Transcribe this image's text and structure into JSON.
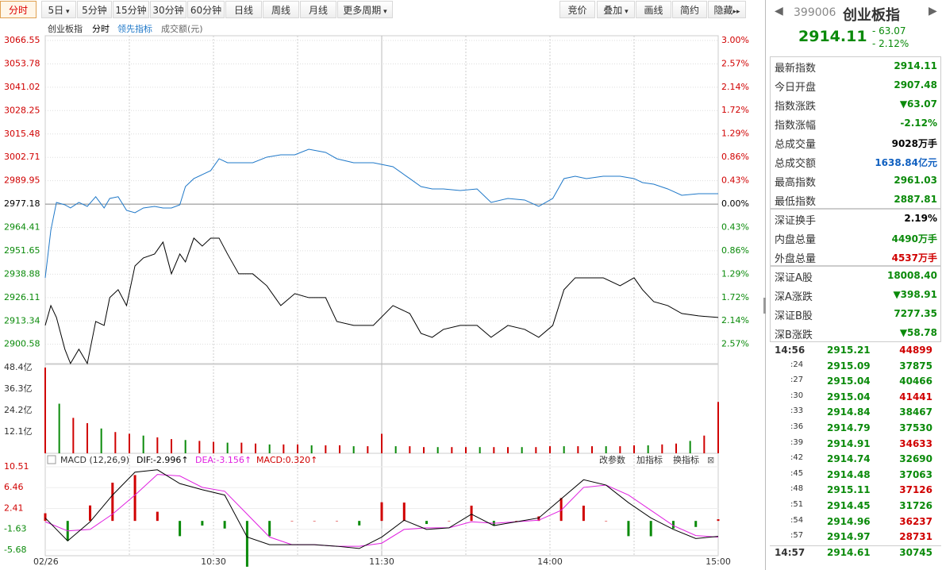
{
  "toolbar": {
    "periods": [
      "分时",
      "5日",
      "5分钟",
      "15分钟",
      "30分钟",
      "60分钟",
      "日线",
      "周线",
      "月线",
      "更多周期"
    ],
    "tools": [
      "竞价",
      "叠加",
      "画线",
      "简约",
      "隐藏"
    ]
  },
  "chart_data": [
    {
      "type": "line",
      "title": "创业板指",
      "subtitle": "分时",
      "annotations": [
        "成交额(元)"
      ],
      "x": [
        0,
        2,
        4,
        7,
        9,
        12,
        15,
        18,
        21,
        23,
        26,
        29,
        32,
        35,
        39,
        42,
        45,
        48,
        50,
        53,
        56,
        59,
        62,
        65,
        69,
        74,
        79,
        84,
        89,
        94,
        100,
        104,
        110,
        117,
        124,
        130,
        134,
        138,
        142,
        148,
        154,
        159,
        165,
        171,
        176,
        181,
        185,
        189,
        193,
        199,
        205,
        210,
        213,
        217,
        222,
        227,
        233,
        240
      ],
      "xlim": [
        0,
        240
      ],
      "xticks": [
        {
          "value": 0,
          "label": "02/26"
        },
        {
          "value": 60,
          "label": "10:30"
        },
        {
          "value": 120,
          "label": "11:30"
        },
        {
          "value": 180,
          "label": "14:00"
        },
        {
          "value": 240,
          "label": "15:00"
        }
      ],
      "ylim": [
        2889.6,
        3066.55
      ],
      "yticks": [
        3066.55,
        3053.78,
        3041.02,
        3028.25,
        3015.48,
        3002.71,
        2989.95,
        2977.18,
        2964.41,
        2951.65,
        2938.88,
        2926.11,
        2913.34,
        2900.58
      ],
      "y2lim": [
        -2.94,
        3.0
      ],
      "y2ticks": [
        {
          "value": 3.0,
          "label": "3.00%"
        },
        {
          "value": 2.57,
          "label": "2.57%"
        },
        {
          "value": 2.14,
          "label": "2.14%"
        },
        {
          "value": 1.72,
          "label": "1.72%"
        },
        {
          "value": 1.29,
          "label": "1.29%"
        },
        {
          "value": 0.86,
          "label": "0.86%"
        },
        {
          "value": 0.43,
          "label": "0.43%"
        },
        {
          "value": 0,
          "label": "0.00%"
        },
        {
          "value": -0.43,
          "label": "0.43%"
        },
        {
          "value": -0.86,
          "label": "0.86%"
        },
        {
          "value": -1.29,
          "label": "1.29%"
        },
        {
          "value": -1.72,
          "label": "1.72%"
        },
        {
          "value": -2.14,
          "label": "2.14%"
        },
        {
          "value": -2.57,
          "label": "2.57%"
        }
      ],
      "grid": true,
      "series": [
        {
          "name": "领先指标",
          "color": "#1f78c8",
          "values": [
            2936.9,
            2962.92,
            2978.09,
            2976.79,
            2975.06,
            2978.09,
            2975.92,
            2981.19,
            2975.06,
            2980.26,
            2981.19,
            2973.76,
            2972.46,
            2975.06,
            2975.92,
            2975.06,
            2975.06,
            2976.79,
            2986.76,
            2991.1,
            2993.27,
            2995.44,
            3001.94,
            2999.77,
            2999.77,
            2999.77,
            3002.81,
            3004.11,
            3004.11,
            3007.14,
            3005.41,
            3001.94,
            2999.77,
            2999.77,
            2997.6,
            2991.1,
            2986.76,
            2985.46,
            2985.46,
            2984.6,
            2985.46,
            2978.09,
            2980.26,
            2979.39,
            2975.92,
            2980.26,
            2991.1,
            2992.4,
            2991.1,
            2992.4,
            2992.4,
            2991.1,
            2988.93,
            2988.06,
            2985.46,
            2982.0,
            2982.86,
            2982.86
          ]
        },
        {
          "color": "#000000",
          "values": [
            2910.89,
            2921.72,
            2915.22,
            2897.88,
            2890.07,
            2897.88,
            2890.07,
            2913.05,
            2910.89,
            2926.06,
            2930.4,
            2921.72,
            2943.4,
            2947.74,
            2949.91,
            2956.41,
            2939.07,
            2949.91,
            2945.57,
            2958.58,
            2954.24,
            2958.58,
            2958.58,
            2949.91,
            2939.07,
            2939.07,
            2932.57,
            2921.72,
            2928.23,
            2926.06,
            2926.06,
            2913.05,
            2910.89,
            2910.89,
            2921.72,
            2917.39,
            2906.55,
            2904.38,
            2908.72,
            2910.89,
            2910.89,
            2904.38,
            2910.89,
            2908.72,
            2904.38,
            2910.89,
            2930.4,
            2936.9,
            2936.9,
            2936.9,
            2932.57,
            2936.9,
            2930.4,
            2923.89,
            2921.72,
            2917.39,
            2916.09,
            2915.22
          ]
        }
      ]
    },
    {
      "type": "bar",
      "x": [
        0,
        5,
        10,
        15,
        20,
        25,
        30,
        35,
        40,
        45,
        50,
        55,
        60,
        65,
        70,
        75,
        80,
        85,
        90,
        95,
        100,
        105,
        110,
        115,
        120,
        125,
        130,
        135,
        140,
        145,
        150,
        155,
        160,
        165,
        170,
        175,
        180,
        185,
        190,
        195,
        200,
        205,
        210,
        215,
        220,
        225,
        230,
        235,
        240
      ],
      "xlim": [
        0,
        240
      ],
      "values": [
        48.4,
        28,
        20,
        17,
        14,
        12,
        11,
        10,
        9,
        8,
        7.5,
        7,
        6.5,
        6,
        6,
        5.5,
        5,
        5,
        5,
        4.5,
        4.5,
        4.5,
        4,
        4,
        11,
        4,
        4,
        3.5,
        3.5,
        3.5,
        3.5,
        3.5,
        3.5,
        3.5,
        3.5,
        3.5,
        4,
        4,
        4,
        4,
        4,
        4,
        4.5,
        4.5,
        5,
        5.5,
        7,
        10,
        29
      ],
      "ylim": [
        0,
        48.4
      ],
      "yticks": [
        {
          "value": 48.4,
          "label": "48.4亿"
        },
        {
          "value": 36.3,
          "label": "36.3亿"
        },
        {
          "value": 24.2,
          "label": "24.2亿"
        },
        {
          "value": 12.1,
          "label": "12.1亿"
        }
      ]
    },
    {
      "type": "macd",
      "title": "MACD (12,26,9)",
      "annotations": [
        "DIF:-2.996↑",
        "DEA:-3.156↑",
        "MACD:0.320↑"
      ],
      "tools": [
        "改参数",
        "加指标",
        "换指标"
      ],
      "x": [
        0,
        8,
        16,
        24,
        32,
        40,
        48,
        56,
        64,
        72,
        80,
        88,
        96,
        104,
        112,
        120,
        128,
        136,
        144,
        152,
        160,
        168,
        176,
        184,
        192,
        200,
        208,
        216,
        224,
        232,
        240
      ],
      "xlim": [
        0,
        240
      ],
      "ylim": [
        -6.76,
        11.74
      ],
      "yticks": [
        10.51,
        6.46,
        2.41,
        -1.63,
        -5.68
      ],
      "series": [
        {
          "name": "DIF",
          "color": "#000000",
          "values": [
            0.57,
            -3.88,
            -0.17,
            5.02,
            9.47,
            9.92,
            7.25,
            6.06,
            5.02,
            -3.14,
            -4.62,
            -4.62,
            -4.62,
            -4.92,
            -5.36,
            -3.14,
            0.13,
            -1.65,
            -1.35,
            1.31,
            -0.91,
            -0.17,
            0.57,
            4.28,
            7.99,
            6.95,
            3.54,
            0.57,
            -1.65,
            -3.43,
            -2.996
          ]
        },
        {
          "name": "DEA",
          "color": "#e020e0",
          "values": [
            -0.17,
            -1.95,
            -1.65,
            1.31,
            5.02,
            9.03,
            8.73,
            6.51,
            5.76,
            1.31,
            -3.14,
            -4.62,
            -4.62,
            -4.92,
            -4.92,
            -4.33,
            -1.65,
            -1.35,
            -1.35,
            -0.17,
            -0.46,
            -0.17,
            0.13,
            2.06,
            6.51,
            6.95,
            5.02,
            2.06,
            -0.91,
            -2.84,
            -3.156
          ]
        },
        {
          "name": "MACD",
          "color": "#d00000",
          "values": [
            1.48,
            -3.86,
            3.0,
            7.42,
            8.9,
            1.78,
            -2.96,
            -0.9,
            -1.48,
            -8.9,
            -2.96,
            0,
            0,
            0,
            -0.88,
            3.62,
            3.56,
            -0.6,
            0,
            2.96,
            -0.9,
            0,
            0.88,
            4.44,
            2.96,
            0,
            -2.96,
            -2.98,
            -1.48,
            -1.18,
            0.32
          ]
        }
      ]
    }
  ],
  "panel": {
    "code": "399006",
    "name": "创业板指",
    "price": "2914.11",
    "change": "- 63.07",
    "pct": "- 2.12%",
    "sections": [
      [
        {
          "label": "最新指数",
          "value": "2914.11",
          "color": "#0a8a0a"
        },
        {
          "label": "今日开盘",
          "value": "2907.48",
          "color": "#0a8a0a"
        },
        {
          "label": "指数涨跌",
          "value": "▼63.07",
          "color": "#0a8a0a"
        },
        {
          "label": "指数涨幅",
          "value": "-2.12%",
          "color": "#0a8a0a"
        },
        {
          "label": "总成交量",
          "value": "9028万手",
          "color": "#000000"
        },
        {
          "label": "总成交额",
          "value": "1638.84亿元",
          "color": "#1060c0"
        },
        {
          "label": "最高指数",
          "value": "2961.03",
          "color": "#0a8a0a"
        },
        {
          "label": "最低指数",
          "value": "2887.81",
          "color": "#0a8a0a"
        }
      ],
      [
        {
          "label": "深证换手",
          "value": "2.19%",
          "color": "#000000"
        },
        {
          "label": "内盘总量",
          "value": "4490万手",
          "color": "#0a8a0a"
        },
        {
          "label": "外盘总量",
          "value": "4537万手",
          "color": "#d00000"
        }
      ],
      [
        {
          "label": "深证A股",
          "value": "18008.40",
          "color": "#0a8a0a"
        },
        {
          "label": "深A涨跌",
          "value": "▼398.91",
          "color": "#0a8a0a"
        },
        {
          "label": "深证B股",
          "value": "7277.35",
          "color": "#0a8a0a"
        },
        {
          "label": "深B涨跌",
          "value": "▼58.78",
          "color": "#0a8a0a"
        }
      ]
    ],
    "ticks": [
      {
        "time": "14:56",
        "price": "2915.21",
        "volume": "44899",
        "color": "#d00000"
      },
      {
        "time": ":24",
        "price": "2915.09",
        "volume": "37875",
        "color": "#0a8a0a"
      },
      {
        "time": ":27",
        "price": "2915.04",
        "volume": "40466",
        "color": "#0a8a0a"
      },
      {
        "time": ":30",
        "price": "2915.04",
        "volume": "41441",
        "color": "#d00000"
      },
      {
        "time": ":33",
        "price": "2914.84",
        "volume": "38467",
        "color": "#0a8a0a"
      },
      {
        "time": ":36",
        "price": "2914.79",
        "volume": "37530",
        "color": "#0a8a0a"
      },
      {
        "time": ":39",
        "price": "2914.91",
        "volume": "34633",
        "color": "#d00000"
      },
      {
        "time": ":42",
        "price": "2914.74",
        "volume": "32690",
        "color": "#0a8a0a"
      },
      {
        "time": ":45",
        "price": "2914.48",
        "volume": "37063",
        "color": "#0a8a0a"
      },
      {
        "time": ":48",
        "price": "2915.11",
        "volume": "37126",
        "color": "#d00000"
      },
      {
        "time": ":51",
        "price": "2914.45",
        "volume": "31726",
        "color": "#0a8a0a"
      },
      {
        "time": ":54",
        "price": "2914.96",
        "volume": "36237",
        "color": "#d00000"
      },
      {
        "time": ":57",
        "price": "2914.97",
        "volume": "28731",
        "color": "#d00000"
      },
      {
        "time": "14:57",
        "price": "2914.61",
        "volume": "30745",
        "color": "#0a8a0a"
      }
    ]
  }
}
